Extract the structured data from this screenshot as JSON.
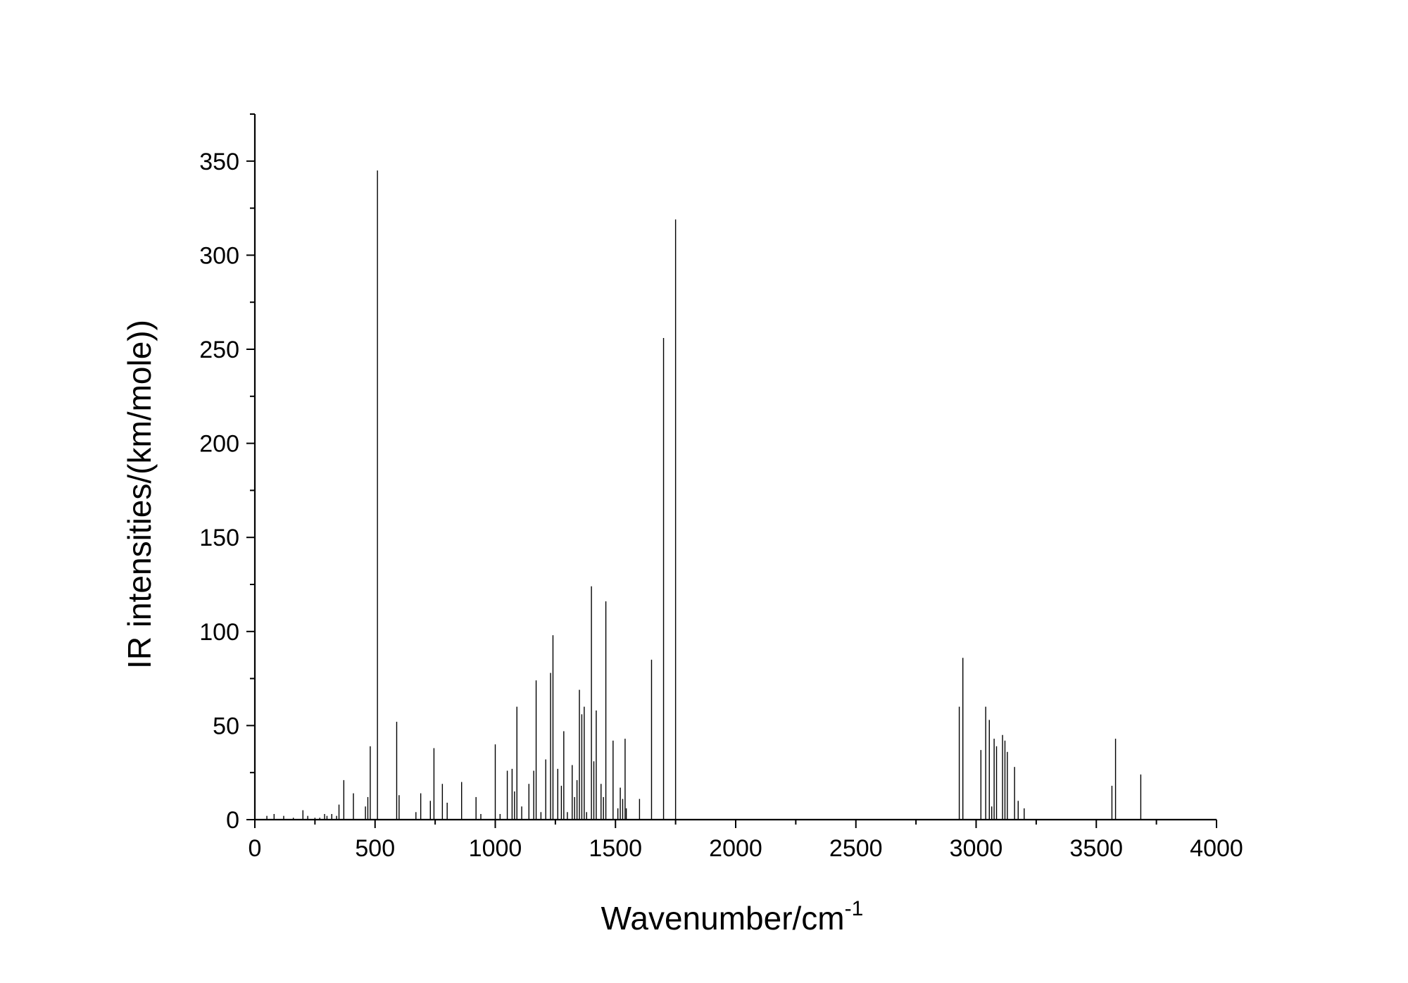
{
  "chart_data": {
    "type": "bar",
    "style": "stick-spectrum",
    "title": "",
    "xlabel": "Wavenumber/cm",
    "xlabel_superscript": "-1",
    "ylabel": "IR intensities/(km/mole))",
    "xlim": [
      0,
      4000
    ],
    "ylim": [
      0,
      375
    ],
    "x_ticks": [
      "0",
      "500",
      "1000",
      "1500",
      "2000",
      "2500",
      "3000",
      "3500",
      "4000"
    ],
    "y_ticks": [
      "0",
      "50",
      "100",
      "150",
      "200",
      "250",
      "300",
      "350"
    ],
    "grid": false,
    "legend": "none",
    "line_color": "#000000",
    "series": [
      {
        "x": [
          50,
          80,
          120,
          160,
          200,
          220,
          250,
          270,
          290,
          300,
          320,
          340,
          350,
          370,
          410,
          460,
          470,
          480,
          510,
          590,
          600,
          670,
          690,
          730,
          745,
          780,
          800,
          860,
          920,
          940,
          1000,
          1020,
          1050,
          1070,
          1080,
          1090,
          1110,
          1140,
          1160,
          1170,
          1190,
          1210,
          1230,
          1240,
          1260,
          1275,
          1285,
          1300,
          1320,
          1330,
          1340,
          1350,
          1360,
          1370,
          1380,
          1400,
          1410,
          1420,
          1440,
          1450,
          1460,
          1490,
          1510,
          1520,
          1530,
          1540,
          1545,
          1600,
          1650,
          1700,
          1750,
          2930,
          2945,
          3020,
          3040,
          3055,
          3065,
          3075,
          3085,
          3110,
          3120,
          3130,
          3160,
          3175,
          3200,
          3565,
          3580,
          3685
        ],
        "values": [
          2,
          3,
          2,
          1,
          5,
          2,
          1,
          1,
          3,
          2,
          3,
          2,
          8,
          21,
          14,
          7,
          12,
          39,
          345,
          52,
          13,
          4,
          14,
          10,
          38,
          19,
          9,
          20,
          12,
          3,
          40,
          3,
          26,
          27,
          15,
          60,
          7,
          19,
          26,
          74,
          4,
          32,
          78,
          98,
          27,
          18,
          47,
          4,
          29,
          12,
          21,
          69,
          56,
          60,
          4,
          124,
          31,
          58,
          19,
          12,
          116,
          42,
          6,
          17,
          11,
          43,
          6,
          11,
          85,
          256,
          319,
          60,
          86,
          37,
          60,
          53,
          7,
          43,
          39,
          45,
          42,
          36,
          28,
          10,
          6,
          18,
          43,
          24
        ]
      }
    ]
  }
}
